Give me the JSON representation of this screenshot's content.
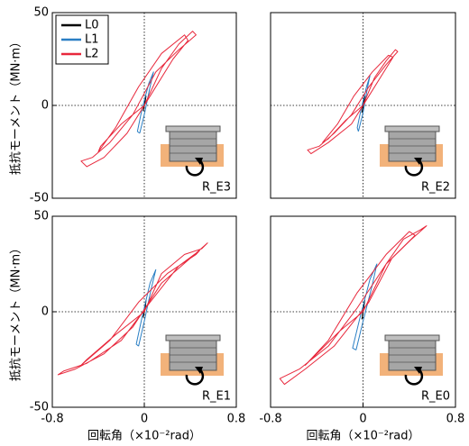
{
  "chart_data": [
    {
      "type": "line",
      "ylabel": "抵抗モーメント（MN·m）",
      "label": "R_E3",
      "legend": "upper left",
      "xlim": [
        -0.8,
        0.8
      ],
      "ylim": [
        -50,
        50
      ],
      "yticks": [
        -50,
        0,
        50
      ],
      "series": [
        {
          "name": "L0",
          "color": "#000000",
          "x": [
            -0.01,
            0.01,
            0.015,
            -0.005,
            -0.01
          ],
          "values": [
            -3,
            3,
            5,
            -2,
            -3
          ]
        },
        {
          "name": "L1",
          "color": "#2a7fc4",
          "x": [
            -0.04,
            0.0,
            0.05,
            0.08,
            0.04,
            -0.02,
            -0.06,
            -0.04
          ],
          "values": [
            -15,
            -5,
            10,
            18,
            12,
            -2,
            -14,
            -15
          ]
        },
        {
          "name": "L2",
          "color": "#e8283c",
          "x": [
            0,
            0.15,
            0.3,
            0.42,
            0.45,
            0.3,
            0.1,
            -0.1,
            -0.3,
            -0.45,
            -0.55,
            -0.5,
            -0.35,
            -0.15,
            0.05,
            0.25,
            0.38,
            0.35,
            0.15,
            -0.05,
            -0.25,
            -0.4,
            -0.38,
            -0.2,
            0
          ],
          "values": [
            0,
            20,
            33,
            40,
            38,
            30,
            18,
            -5,
            -20,
            -28,
            -30,
            -33,
            -28,
            -15,
            5,
            25,
            35,
            38,
            28,
            10,
            -12,
            -25,
            -22,
            -10,
            0
          ]
        }
      ]
    },
    {
      "type": "line",
      "label": "R_E2",
      "xlim": [
        -0.8,
        0.8
      ],
      "ylim": [
        -50,
        50
      ],
      "series": [
        {
          "color": "#000000",
          "x": [
            -0.01,
            0.01,
            0.015,
            -0.005,
            -0.01
          ],
          "values": [
            -4,
            2,
            5,
            -2,
            -4
          ]
        },
        {
          "color": "#2a7fc4",
          "x": [
            -0.04,
            0.0,
            0.04,
            0.06,
            0.03,
            -0.02,
            -0.05,
            -0.04
          ],
          "values": [
            -14,
            -4,
            10,
            16,
            10,
            -3,
            -12,
            -14
          ]
        },
        {
          "color": "#e8283c",
          "x": [
            0,
            0.1,
            0.2,
            0.28,
            0.3,
            0.2,
            0.05,
            -0.1,
            -0.25,
            -0.38,
            -0.48,
            -0.45,
            -0.3,
            -0.1,
            0.05,
            0.18,
            0.26,
            0.22,
            0.08,
            -0.08,
            -0.22,
            -0.35,
            -0.3,
            -0.15,
            0
          ],
          "values": [
            0,
            15,
            24,
            30,
            29,
            22,
            10,
            -5,
            -15,
            -22,
            -24,
            -26,
            -20,
            -10,
            5,
            18,
            26,
            27,
            18,
            5,
            -10,
            -20,
            -18,
            -8,
            0
          ]
        }
      ]
    },
    {
      "type": "line",
      "ylabel": "抵抗モーメント（MN·m）",
      "xlabel": "回転角（×10⁻²rad）",
      "label": "R_E1",
      "xlim": [
        -0.8,
        0.8
      ],
      "ylim": [
        -50,
        50
      ],
      "xticks": [
        -0.8,
        0,
        0.8
      ],
      "yticks": [
        -50,
        0,
        50
      ],
      "series": [
        {
          "color": "#000000",
          "x": [
            -0.01,
            0.01,
            0.015,
            -0.005,
            -0.01
          ],
          "values": [
            -3,
            3,
            6,
            -2,
            -3
          ]
        },
        {
          "color": "#2a7fc4",
          "x": [
            -0.05,
            0.0,
            0.06,
            0.1,
            0.05,
            -0.02,
            -0.07,
            -0.05
          ],
          "values": [
            -18,
            -5,
            12,
            22,
            15,
            -3,
            -17,
            -18
          ]
        },
        {
          "color": "#e8283c",
          "x": [
            0,
            0.15,
            0.35,
            0.5,
            0.55,
            0.4,
            0.15,
            -0.1,
            -0.35,
            -0.6,
            -0.75,
            -0.7,
            -0.5,
            -0.2,
            0.05,
            0.3,
            0.48,
            0.45,
            0.2,
            -0.05,
            -0.3,
            -0.55,
            -0.5,
            -0.25,
            0
          ],
          "values": [
            0,
            20,
            30,
            33,
            36,
            28,
            15,
            -8,
            -22,
            -30,
            -33,
            -31,
            -27,
            -15,
            5,
            24,
            32,
            30,
            20,
            5,
            -15,
            -28,
            -25,
            -12,
            0
          ]
        }
      ]
    },
    {
      "type": "line",
      "xlabel": "回転角（×10⁻²rad）",
      "label": "R_E0",
      "xlim": [
        -0.8,
        0.8
      ],
      "ylim": [
        -50,
        50
      ],
      "xticks": [
        -0.8,
        0,
        0.8
      ],
      "series": [
        {
          "color": "#000000",
          "x": [
            -0.01,
            0.01,
            0.015,
            -0.005,
            -0.01
          ],
          "values": [
            -4,
            4,
            6,
            -3,
            -4
          ]
        },
        {
          "color": "#2a7fc4",
          "x": [
            -0.06,
            0.0,
            0.08,
            0.12,
            0.06,
            -0.03,
            -0.09,
            -0.06
          ],
          "values": [
            -20,
            -5,
            14,
            25,
            17,
            -4,
            -19,
            -20
          ]
        },
        {
          "color": "#e8283c",
          "x": [
            0,
            0.2,
            0.35,
            0.5,
            0.55,
            0.42,
            0.2,
            -0.05,
            -0.3,
            -0.55,
            -0.72,
            -0.68,
            -0.5,
            -0.25,
            0.05,
            0.25,
            0.45,
            0.4,
            0.2,
            -0.05,
            -0.3,
            -0.5,
            -0.45,
            -0.2,
            0
          ],
          "values": [
            0,
            25,
            38,
            43,
            45,
            38,
            25,
            2,
            -18,
            -30,
            -35,
            -38,
            -30,
            -18,
            5,
            28,
            40,
            42,
            30,
            10,
            -15,
            -28,
            -25,
            -10,
            0
          ]
        }
      ]
    }
  ]
}
